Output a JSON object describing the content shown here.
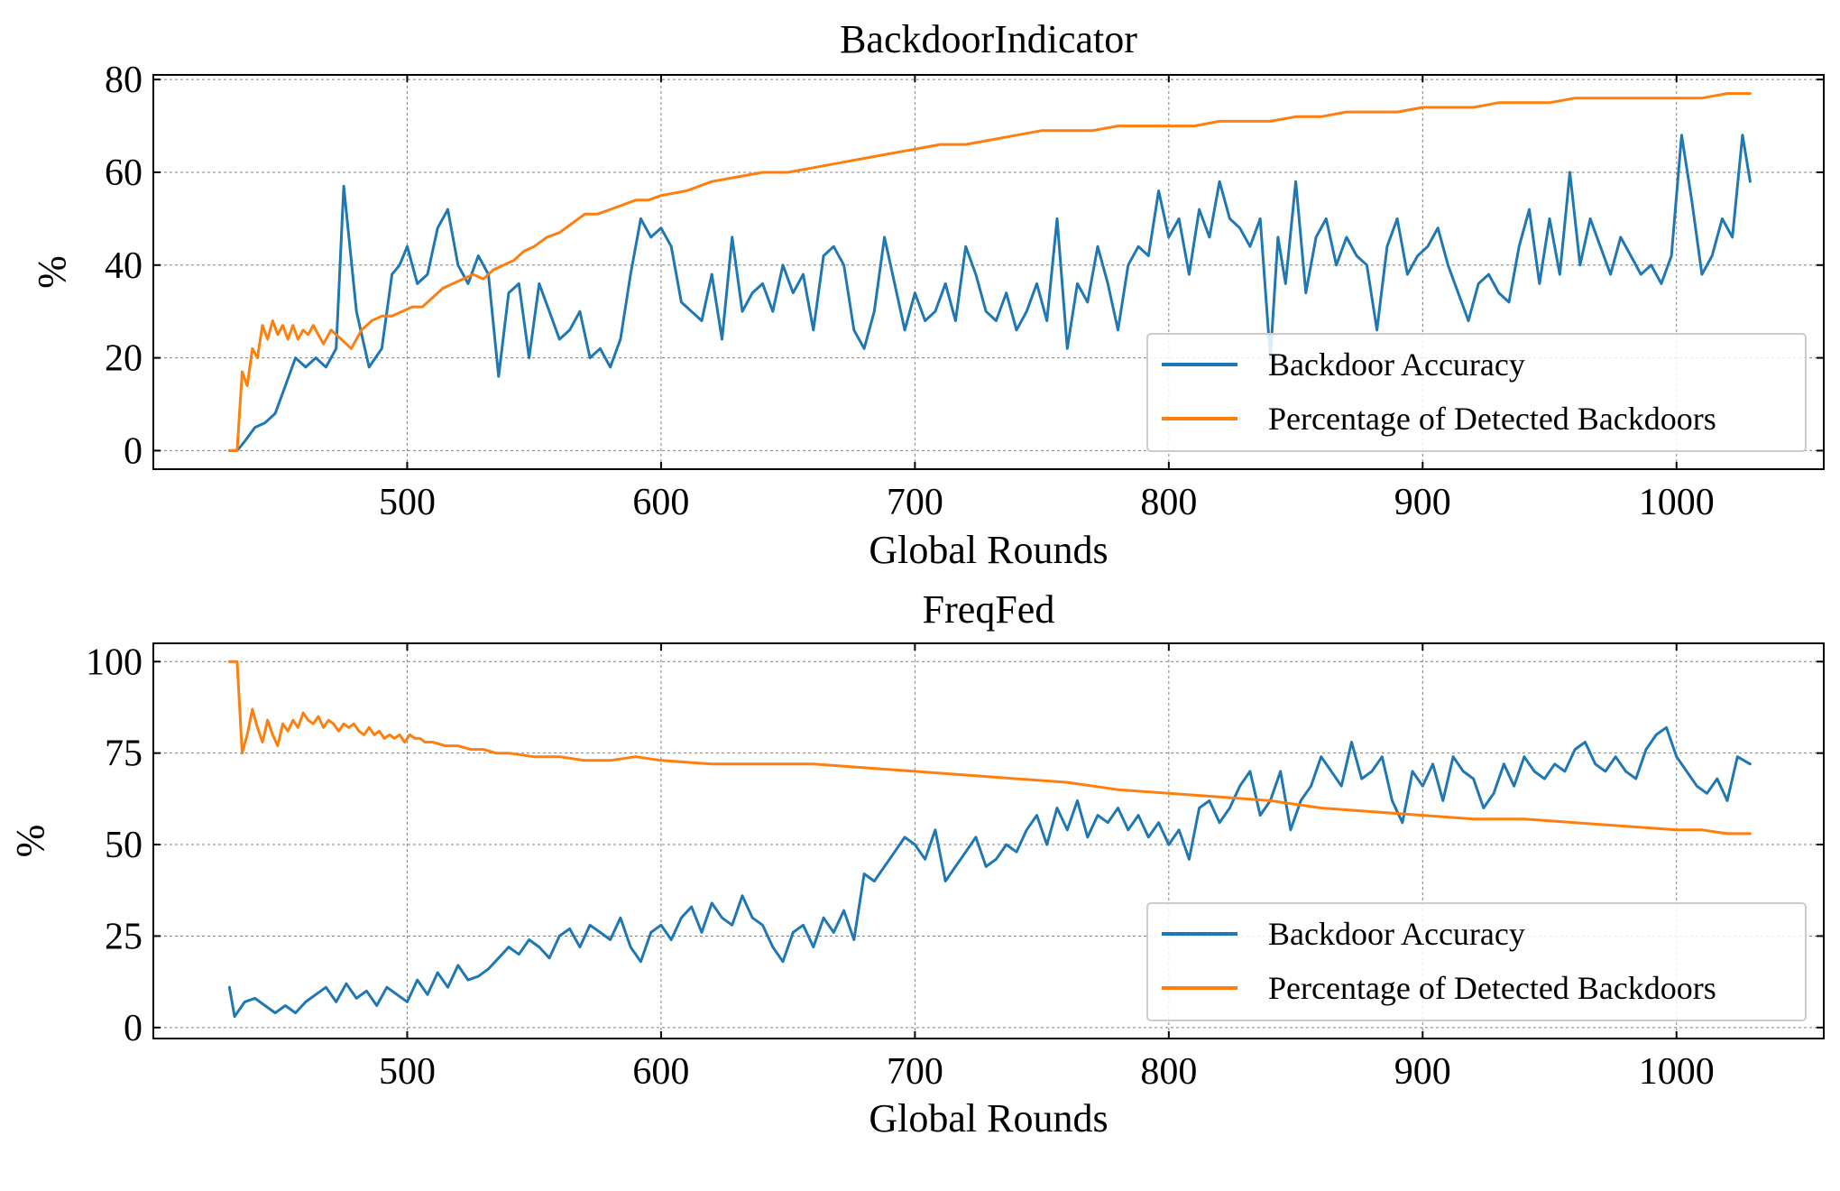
{
  "colors": {
    "accuracy": "#1f77b4",
    "detected": "#ff7f0e"
  },
  "chart_data": [
    {
      "type": "line",
      "title": "BackdoorIndicator",
      "xlabel": "Global Rounds",
      "ylabel": "%",
      "xlim": [
        400,
        1058
      ],
      "ylim": [
        -4,
        81
      ],
      "xticks": [
        500,
        600,
        700,
        800,
        900,
        1000
      ],
      "yticks": [
        0,
        20,
        40,
        60,
        80
      ],
      "grid": true,
      "legend_position": "lower-right",
      "series": [
        {
          "name": "Backdoor Accuracy",
          "color": "#1f77b4",
          "x": [
            430,
            433,
            436,
            440,
            444,
            448,
            452,
            456,
            460,
            464,
            468,
            472,
            475,
            480,
            485,
            490,
            494,
            497,
            500,
            504,
            508,
            512,
            516,
            520,
            524,
            528,
            532,
            536,
            540,
            544,
            548,
            552,
            556,
            560,
            564,
            568,
            572,
            576,
            580,
            584,
            588,
            592,
            596,
            600,
            604,
            608,
            612,
            616,
            620,
            624,
            628,
            632,
            636,
            640,
            644,
            648,
            652,
            656,
            660,
            664,
            668,
            672,
            676,
            680,
            684,
            688,
            692,
            696,
            700,
            704,
            708,
            712,
            716,
            720,
            724,
            728,
            732,
            736,
            740,
            744,
            748,
            752,
            756,
            760,
            764,
            768,
            772,
            776,
            780,
            784,
            788,
            792,
            796,
            800,
            804,
            808,
            812,
            816,
            820,
            824,
            828,
            832,
            836,
            840,
            843,
            846,
            850,
            854,
            858,
            862,
            866,
            870,
            874,
            878,
            882,
            886,
            890,
            894,
            898,
            902,
            906,
            910,
            914,
            918,
            922,
            926,
            930,
            934,
            938,
            942,
            946,
            950,
            954,
            958,
            962,
            966,
            970,
            974,
            978,
            982,
            986,
            990,
            994,
            998,
            1002,
            1006,
            1010,
            1014,
            1018,
            1022,
            1026,
            1029
          ],
          "values": [
            0,
            0,
            2,
            5,
            6,
            8,
            14,
            20,
            18,
            20,
            18,
            22,
            57,
            30,
            18,
            22,
            38,
            40,
            44,
            36,
            38,
            48,
            52,
            40,
            36,
            42,
            38,
            16,
            34,
            36,
            20,
            36,
            30,
            24,
            26,
            30,
            20,
            22,
            18,
            24,
            38,
            50,
            46,
            48,
            44,
            32,
            30,
            28,
            38,
            24,
            46,
            30,
            34,
            36,
            30,
            40,
            34,
            38,
            26,
            42,
            44,
            40,
            26,
            22,
            30,
            46,
            36,
            26,
            34,
            28,
            30,
            36,
            28,
            44,
            38,
            30,
            28,
            34,
            26,
            30,
            36,
            28,
            50,
            22,
            36,
            32,
            44,
            36,
            26,
            40,
            44,
            42,
            56,
            46,
            50,
            38,
            52,
            46,
            58,
            50,
            48,
            44,
            50,
            20,
            46,
            36,
            58,
            34,
            46,
            50,
            40,
            46,
            42,
            40,
            26,
            44,
            50,
            38,
            42,
            44,
            48,
            40,
            34,
            28,
            36,
            38,
            34,
            32,
            44,
            52,
            36,
            50,
            38,
            60,
            40,
            50,
            44,
            38,
            46,
            42,
            38,
            40,
            36,
            42,
            68,
            54,
            38,
            42,
            50,
            46,
            68,
            58
          ]
        },
        {
          "name": "Percentage of Detected Backdoors",
          "color": "#ff7f0e",
          "x": [
            430,
            433,
            435,
            437,
            439,
            441,
            443,
            445,
            447,
            449,
            451,
            453,
            455,
            457,
            459,
            461,
            463,
            465,
            467,
            470,
            474,
            478,
            482,
            486,
            490,
            494,
            498,
            502,
            506,
            510,
            514,
            518,
            522,
            526,
            530,
            534,
            538,
            542,
            546,
            550,
            555,
            560,
            565,
            570,
            575,
            580,
            585,
            590,
            595,
            600,
            610,
            620,
            630,
            640,
            650,
            660,
            670,
            680,
            690,
            700,
            710,
            720,
            730,
            740,
            750,
            760,
            770,
            780,
            790,
            800,
            810,
            820,
            830,
            840,
            850,
            860,
            870,
            880,
            890,
            900,
            910,
            920,
            930,
            940,
            950,
            960,
            970,
            980,
            990,
            1000,
            1010,
            1020,
            1029
          ],
          "values": [
            0,
            0,
            17,
            14,
            22,
            20,
            27,
            24,
            28,
            25,
            27,
            24,
            27,
            24,
            26,
            25,
            27,
            25,
            23,
            26,
            24,
            22,
            26,
            28,
            29,
            29,
            30,
            31,
            31,
            33,
            35,
            36,
            37,
            38,
            37,
            39,
            40,
            41,
            43,
            44,
            46,
            47,
            49,
            51,
            51,
            52,
            53,
            54,
            54,
            55,
            56,
            58,
            59,
            60,
            60,
            61,
            62,
            63,
            64,
            65,
            66,
            66,
            67,
            68,
            69,
            69,
            69,
            70,
            70,
            70,
            70,
            71,
            71,
            71,
            72,
            72,
            73,
            73,
            73,
            74,
            74,
            74,
            75,
            75,
            75,
            76,
            76,
            76,
            76,
            76,
            76,
            77,
            77
          ]
        }
      ]
    },
    {
      "type": "line",
      "title": "FreqFed",
      "xlabel": "Global Rounds",
      "ylabel": "%",
      "xlim": [
        400,
        1058
      ],
      "ylim": [
        -3,
        105
      ],
      "xticks": [
        500,
        600,
        700,
        800,
        900,
        1000
      ],
      "yticks": [
        0,
        25,
        50,
        75,
        100
      ],
      "grid": true,
      "legend_position": "lower-right",
      "series": [
        {
          "name": "Backdoor Accuracy",
          "color": "#1f77b4",
          "x": [
            430,
            432,
            436,
            440,
            444,
            448,
            452,
            456,
            460,
            464,
            468,
            472,
            476,
            480,
            484,
            488,
            492,
            496,
            500,
            504,
            508,
            512,
            516,
            520,
            524,
            528,
            532,
            536,
            540,
            544,
            548,
            552,
            556,
            560,
            564,
            568,
            572,
            576,
            580,
            584,
            588,
            592,
            596,
            600,
            604,
            608,
            612,
            616,
            620,
            624,
            628,
            632,
            636,
            640,
            644,
            648,
            652,
            656,
            660,
            664,
            668,
            672,
            676,
            680,
            684,
            688,
            692,
            696,
            700,
            704,
            708,
            712,
            716,
            720,
            724,
            728,
            732,
            736,
            740,
            744,
            748,
            752,
            756,
            760,
            764,
            768,
            772,
            776,
            780,
            784,
            788,
            792,
            796,
            800,
            804,
            808,
            812,
            816,
            820,
            824,
            828,
            832,
            836,
            840,
            844,
            848,
            852,
            856,
            860,
            864,
            868,
            872,
            876,
            880,
            884,
            888,
            892,
            896,
            900,
            904,
            908,
            912,
            916,
            920,
            924,
            928,
            932,
            936,
            940,
            944,
            948,
            952,
            956,
            960,
            964,
            968,
            972,
            976,
            980,
            984,
            988,
            992,
            996,
            1000,
            1004,
            1008,
            1012,
            1016,
            1020,
            1024,
            1029
          ],
          "values": [
            11,
            3,
            7,
            8,
            6,
            4,
            6,
            4,
            7,
            9,
            11,
            7,
            12,
            8,
            10,
            6,
            11,
            9,
            7,
            13,
            9,
            15,
            11,
            17,
            13,
            14,
            16,
            19,
            22,
            20,
            24,
            22,
            19,
            25,
            27,
            22,
            28,
            26,
            24,
            30,
            22,
            18,
            26,
            28,
            24,
            30,
            33,
            26,
            34,
            30,
            28,
            36,
            30,
            28,
            22,
            18,
            26,
            28,
            22,
            30,
            26,
            32,
            24,
            42,
            40,
            44,
            48,
            52,
            50,
            46,
            54,
            40,
            44,
            48,
            52,
            44,
            46,
            50,
            48,
            54,
            58,
            50,
            60,
            54,
            62,
            52,
            58,
            56,
            60,
            54,
            58,
            52,
            56,
            50,
            54,
            46,
            60,
            62,
            56,
            60,
            66,
            70,
            58,
            62,
            70,
            54,
            62,
            66,
            74,
            70,
            66,
            78,
            68,
            70,
            74,
            62,
            56,
            70,
            66,
            72,
            62,
            74,
            70,
            68,
            60,
            64,
            72,
            66,
            74,
            70,
            68,
            72,
            70,
            76,
            78,
            72,
            70,
            74,
            70,
            68,
            76,
            80,
            82,
            74,
            70,
            66,
            64,
            68,
            62,
            74,
            72
          ]
        },
        {
          "name": "Percentage of Detected Backdoors",
          "color": "#ff7f0e",
          "x": [
            430,
            433,
            435,
            437,
            439,
            441,
            443,
            445,
            447,
            449,
            451,
            453,
            455,
            457,
            459,
            461,
            463,
            465,
            467,
            469,
            471,
            473,
            475,
            477,
            479,
            481,
            483,
            485,
            487,
            489,
            491,
            493,
            495,
            497,
            499,
            501,
            503,
            505,
            507,
            510,
            515,
            520,
            525,
            530,
            535,
            540,
            550,
            560,
            570,
            580,
            590,
            600,
            620,
            640,
            660,
            680,
            700,
            720,
            740,
            760,
            780,
            800,
            820,
            840,
            860,
            880,
            900,
            920,
            940,
            960,
            980,
            1000,
            1010,
            1020,
            1029
          ],
          "values": [
            100,
            100,
            75,
            80,
            87,
            82,
            78,
            84,
            80,
            77,
            83,
            81,
            84,
            82,
            86,
            84,
            83,
            85,
            82,
            84,
            83,
            81,
            83,
            82,
            83,
            81,
            80,
            82,
            80,
            81,
            79,
            80,
            79,
            80,
            78,
            80,
            79,
            79,
            78,
            78,
            77,
            77,
            76,
            76,
            75,
            75,
            74,
            74,
            73,
            73,
            74,
            73,
            72,
            72,
            72,
            71,
            70,
            69,
            68,
            67,
            65,
            64,
            63,
            62,
            60,
            59,
            58,
            57,
            57,
            56,
            55,
            54,
            54,
            53,
            53
          ]
        }
      ]
    }
  ]
}
